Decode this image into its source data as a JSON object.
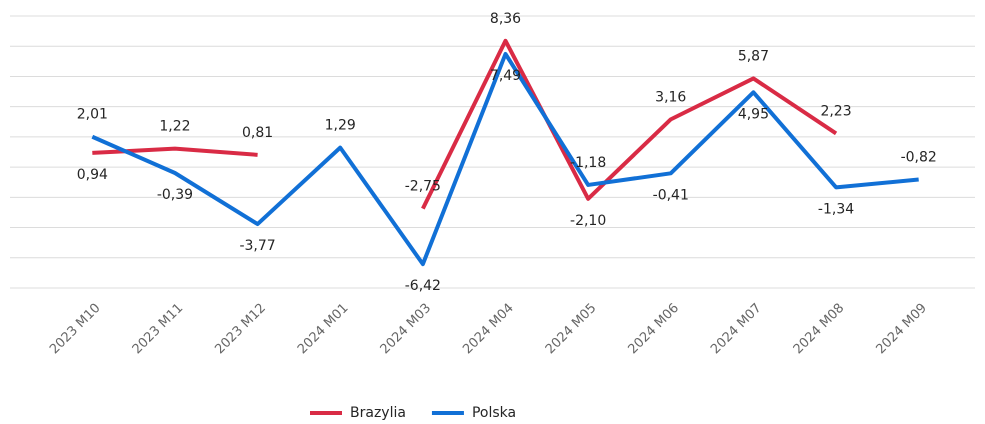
{
  "chart_data": {
    "type": "line",
    "categories": [
      "2023 M10",
      "2023 M11",
      "2023 M12",
      "2024 M01",
      "2024 M03",
      "2024 M04",
      "2024 M05",
      "2024 M06",
      "2024 M07",
      "2024 M08",
      "2024 M09"
    ],
    "series": [
      {
        "name": "Brazylia",
        "color": "#d92b45",
        "values": [
          0.94,
          1.22,
          0.81,
          null,
          -2.75,
          8.36,
          -2.1,
          3.16,
          5.87,
          2.23,
          null
        ],
        "value_labels": [
          "0,94",
          "1,22",
          "0,81",
          null,
          "-2,75",
          "8,36",
          "-2,10",
          "3,16",
          "5,87",
          "2,23",
          null
        ]
      },
      {
        "name": "Polska",
        "color": "#1170d6",
        "values": [
          2.01,
          -0.39,
          -3.77,
          1.29,
          -6.42,
          7.49,
          -1.18,
          -0.41,
          4.95,
          -1.34,
          -0.82
        ],
        "value_labels": [
          "2,01",
          "-0,39",
          "-3,77",
          "1,29",
          "-6,42",
          "7,49",
          "-1,18",
          "-0,41",
          "4,95",
          "-1,34",
          "-0,82"
        ]
      }
    ],
    "ylim": [
      -8,
      10
    ],
    "yticks": [
      -8,
      -6,
      -4,
      -2,
      0,
      2,
      4,
      6,
      8,
      10
    ],
    "grid": true,
    "legend": "bottom"
  }
}
